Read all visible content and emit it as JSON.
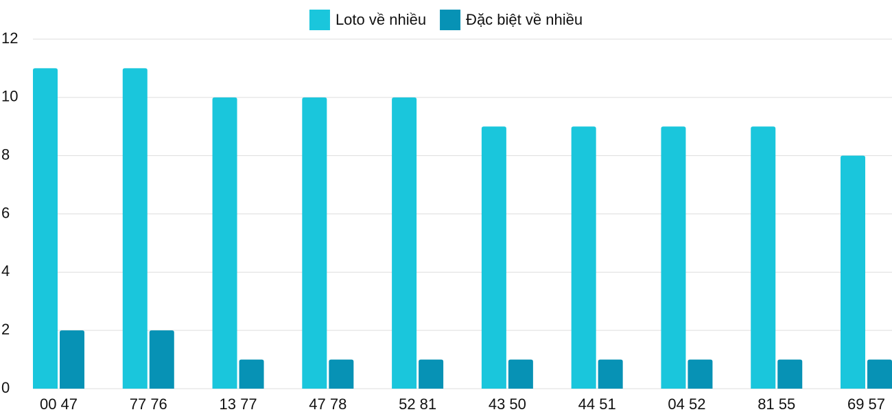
{
  "chart_data": {
    "type": "bar",
    "categories": [
      "00 47",
      "77 76",
      "13 77",
      "47 78",
      "52 81",
      "43 50",
      "44 51",
      "04 52",
      "81 55",
      "69 57"
    ],
    "series": [
      {
        "name": "Loto về nhiều",
        "color": "#1ac6dc",
        "values": [
          11,
          11,
          10,
          10,
          10,
          9,
          9,
          9,
          9,
          8
        ]
      },
      {
        "name": "Đặc biệt về nhiều",
        "color": "#0792b5",
        "values": [
          2,
          2,
          1,
          1,
          1,
          1,
          1,
          1,
          1,
          1
        ]
      }
    ],
    "ylim": [
      0,
      12
    ],
    "yticks": [
      0,
      2,
      4,
      6,
      8,
      10,
      12
    ],
    "grid": true,
    "legend": "top"
  }
}
